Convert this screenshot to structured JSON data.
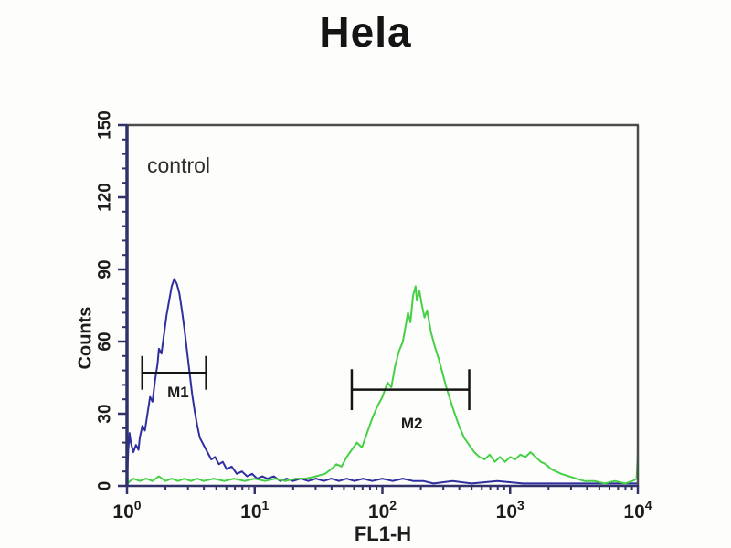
{
  "title": "Hela",
  "plot": {
    "annotation": "control",
    "frame_color_dark": "#4d4d4d",
    "axis_color": "#32326a",
    "text_color": "#1c1c1c"
  },
  "chart_data": {
    "type": "line",
    "subtype": "flow-cytometry-histogram",
    "title": "Hela",
    "xlabel": "FL1-H",
    "ylabel": "Counts",
    "x_scale": "log",
    "x_range_exponents": [
      0,
      4
    ],
    "x_tick_exponents": [
      0,
      1,
      2,
      3,
      4
    ],
    "ylim": [
      0,
      150
    ],
    "y_ticks": [
      0,
      30,
      60,
      90,
      120,
      150
    ],
    "y_minor_step": 6,
    "grid": false,
    "legend": "none",
    "annotation": "control",
    "series": [
      {
        "name": "blue-control",
        "color": "#2f2fa0",
        "width": 2,
        "peak_x": 2.4,
        "peak_y": 86,
        "points": [
          [
            0.0,
            2
          ],
          [
            0.01,
            15
          ],
          [
            0.02,
            22
          ],
          [
            0.03,
            18
          ],
          [
            0.05,
            14
          ],
          [
            0.07,
            17
          ],
          [
            0.09,
            15
          ],
          [
            0.1,
            20
          ],
          [
            0.12,
            25
          ],
          [
            0.14,
            23
          ],
          [
            0.16,
            30
          ],
          [
            0.18,
            37
          ],
          [
            0.2,
            35
          ],
          [
            0.22,
            44
          ],
          [
            0.24,
            51
          ],
          [
            0.25,
            57
          ],
          [
            0.27,
            55
          ],
          [
            0.29,
            63
          ],
          [
            0.31,
            71
          ],
          [
            0.33,
            77
          ],
          [
            0.35,
            83
          ],
          [
            0.37,
            86
          ],
          [
            0.39,
            84
          ],
          [
            0.41,
            80
          ],
          [
            0.43,
            73
          ],
          [
            0.45,
            65
          ],
          [
            0.47,
            56
          ],
          [
            0.49,
            47
          ],
          [
            0.51,
            38
          ],
          [
            0.53,
            31
          ],
          [
            0.55,
            25
          ],
          [
            0.57,
            20
          ],
          [
            0.6,
            17
          ],
          [
            0.63,
            14
          ],
          [
            0.66,
            11
          ],
          [
            0.69,
            12
          ],
          [
            0.72,
            9
          ],
          [
            0.75,
            10
          ],
          [
            0.78,
            7
          ],
          [
            0.82,
            8
          ],
          [
            0.86,
            5
          ],
          [
            0.9,
            6
          ],
          [
            0.94,
            4
          ],
          [
            0.98,
            5
          ],
          [
            1.02,
            3
          ],
          [
            1.06,
            4
          ],
          [
            1.1,
            3
          ],
          [
            1.15,
            4
          ],
          [
            1.2,
            2
          ],
          [
            1.25,
            3
          ],
          [
            1.3,
            2
          ],
          [
            1.36,
            3
          ],
          [
            1.42,
            2
          ],
          [
            1.48,
            3
          ],
          [
            1.54,
            2
          ],
          [
            1.6,
            3
          ],
          [
            1.66,
            2
          ],
          [
            1.72,
            3
          ],
          [
            1.78,
            2
          ],
          [
            1.85,
            3
          ],
          [
            1.92,
            2
          ],
          [
            2.0,
            3
          ],
          [
            2.08,
            2
          ],
          [
            2.16,
            3
          ],
          [
            2.24,
            2
          ],
          [
            2.32,
            2
          ],
          [
            2.4,
            1
          ],
          [
            2.55,
            2
          ],
          [
            2.7,
            1
          ],
          [
            2.9,
            2
          ],
          [
            3.1,
            1
          ],
          [
            3.4,
            1
          ],
          [
            3.7,
            1
          ],
          [
            4.0,
            1
          ]
        ]
      },
      {
        "name": "green-sample",
        "color": "#46d046",
        "width": 2,
        "peak_x": 180,
        "peak_y": 83,
        "points": [
          [
            0.0,
            1
          ],
          [
            0.05,
            3
          ],
          [
            0.1,
            2
          ],
          [
            0.15,
            3
          ],
          [
            0.2,
            2
          ],
          [
            0.25,
            4
          ],
          [
            0.3,
            2
          ],
          [
            0.35,
            3
          ],
          [
            0.4,
            2
          ],
          [
            0.45,
            3
          ],
          [
            0.5,
            2
          ],
          [
            0.55,
            3
          ],
          [
            0.6,
            2
          ],
          [
            0.68,
            3
          ],
          [
            0.76,
            2
          ],
          [
            0.84,
            3
          ],
          [
            0.92,
            2
          ],
          [
            1.0,
            3
          ],
          [
            1.08,
            2
          ],
          [
            1.16,
            3
          ],
          [
            1.24,
            2
          ],
          [
            1.32,
            3
          ],
          [
            1.4,
            3
          ],
          [
            1.48,
            4
          ],
          [
            1.55,
            5
          ],
          [
            1.6,
            7
          ],
          [
            1.64,
            9
          ],
          [
            1.68,
            8
          ],
          [
            1.72,
            12
          ],
          [
            1.76,
            15
          ],
          [
            1.8,
            18
          ],
          [
            1.84,
            16
          ],
          [
            1.88,
            22
          ],
          [
            1.92,
            28
          ],
          [
            1.96,
            33
          ],
          [
            2.0,
            37
          ],
          [
            2.04,
            43
          ],
          [
            2.07,
            41
          ],
          [
            2.1,
            50
          ],
          [
            2.13,
            56
          ],
          [
            2.16,
            60
          ],
          [
            2.18,
            66
          ],
          [
            2.2,
            72
          ],
          [
            2.22,
            68
          ],
          [
            2.24,
            79
          ],
          [
            2.26,
            83
          ],
          [
            2.27,
            77
          ],
          [
            2.29,
            81
          ],
          [
            2.31,
            75
          ],
          [
            2.33,
            70
          ],
          [
            2.35,
            73
          ],
          [
            2.38,
            64
          ],
          [
            2.41,
            58
          ],
          [
            2.44,
            53
          ],
          [
            2.47,
            47
          ],
          [
            2.5,
            41
          ],
          [
            2.53,
            36
          ],
          [
            2.56,
            31
          ],
          [
            2.6,
            25
          ],
          [
            2.64,
            20
          ],
          [
            2.68,
            17
          ],
          [
            2.72,
            14
          ],
          [
            2.76,
            12
          ],
          [
            2.8,
            11
          ],
          [
            2.84,
            13
          ],
          [
            2.88,
            10
          ],
          [
            2.92,
            12
          ],
          [
            2.96,
            10
          ],
          [
            3.0,
            12
          ],
          [
            3.04,
            11
          ],
          [
            3.08,
            13
          ],
          [
            3.12,
            12
          ],
          [
            3.16,
            14
          ],
          [
            3.2,
            12
          ],
          [
            3.24,
            10
          ],
          [
            3.28,
            9
          ],
          [
            3.32,
            7
          ],
          [
            3.36,
            6
          ],
          [
            3.4,
            5
          ],
          [
            3.46,
            4
          ],
          [
            3.52,
            3
          ],
          [
            3.58,
            2
          ],
          [
            3.66,
            2
          ],
          [
            3.74,
            1
          ],
          [
            3.82,
            2
          ],
          [
            3.9,
            1
          ],
          [
            3.96,
            2
          ],
          [
            3.99,
            3
          ],
          [
            4.0,
            14
          ]
        ]
      }
    ],
    "markers": [
      {
        "label": "M1",
        "y": 47,
        "x_start_exp": 0.12,
        "x_end_exp": 0.62,
        "cap_half_counts": 7,
        "label_x_exp": 0.4,
        "label_y_count": 39
      },
      {
        "label": "M2",
        "y": 40,
        "x_start_exp": 1.76,
        "x_end_exp": 2.68,
        "cap_half_counts": 8.5,
        "label_x_exp": 2.23,
        "label_y_count": 26
      }
    ]
  }
}
